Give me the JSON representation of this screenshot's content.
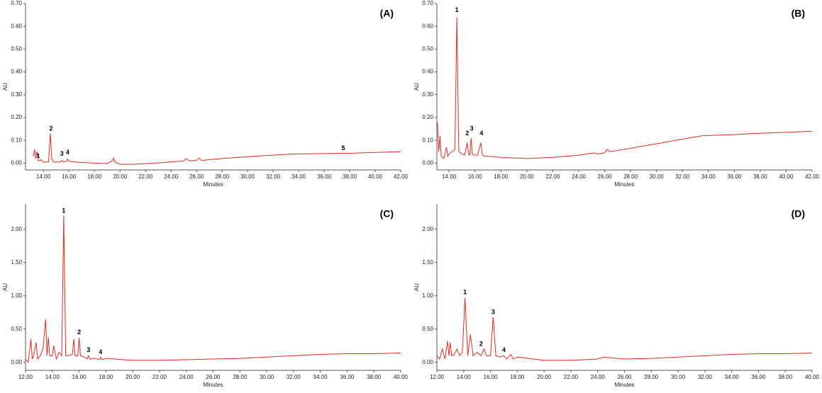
{
  "chart_data": [
    {
      "type": "line",
      "title": "(A)",
      "xlabel": "Minutes",
      "ylabel": "AU",
      "xlim": [
        12.6,
        42
      ],
      "ylim": [
        -0.03,
        0.7
      ],
      "xticks": [
        {
          "value": 14,
          "label": "14.00"
        },
        {
          "value": 16,
          "label": "16.00"
        },
        {
          "value": 18,
          "label": "18.00"
        },
        {
          "value": 20,
          "label": "20.00"
        },
        {
          "value": 22,
          "label": "22.00"
        },
        {
          "value": 24,
          "label": "24.00"
        },
        {
          "value": 26,
          "label": "26.00"
        },
        {
          "value": 28,
          "label": "28.00"
        },
        {
          "value": 30,
          "label": "30.00"
        },
        {
          "value": 32,
          "label": "32.00"
        },
        {
          "value": 34,
          "label": "34.00"
        },
        {
          "value": 36,
          "label": "36.00"
        },
        {
          "value": 38,
          "label": "38.00"
        },
        {
          "value": 40,
          "label": "40.00"
        },
        {
          "value": 42,
          "label": "42.00"
        }
      ],
      "yticks": [
        {
          "value": 0,
          "label": "0.00"
        },
        {
          "value": 0.1,
          "label": "0.10"
        },
        {
          "value": 0.2,
          "label": "0.20"
        },
        {
          "value": 0.3,
          "label": "0.30"
        },
        {
          "value": 0.4,
          "label": "0.40"
        },
        {
          "value": 0.5,
          "label": "0.50"
        },
        {
          "value": 0.6,
          "label": "0.60"
        },
        {
          "value": 0.7,
          "label": "0.70"
        }
      ],
      "x": [
        13.2,
        13.3,
        13.4,
        13.5,
        13.6,
        13.8,
        14.0,
        14.4,
        14.55,
        14.65,
        14.8,
        15.0,
        15.3,
        15.45,
        15.6,
        15.8,
        15.9,
        16.0,
        16.5,
        17.0,
        18.0,
        19.0,
        19.4,
        19.5,
        19.6,
        20.0,
        21.0,
        22.0,
        24.0,
        25.0,
        25.2,
        25.4,
        26.0,
        26.2,
        26.4,
        27.0,
        28.0,
        30.0,
        32.0,
        33.5,
        36.0,
        37.5,
        38.0,
        40.0,
        42.0
      ],
      "series": [
        {
          "color": "#e02a24",
          "values": [
            0.03,
            0.06,
            0.02,
            0.05,
            0.01,
            0.015,
            0.005,
            0.005,
            0.13,
            0.02,
            0.005,
            0.005,
            0.005,
            0.012,
            0.005,
            0.008,
            0.018,
            0.008,
            0.005,
            0.003,
            0.0,
            -0.002,
            0.01,
            0.022,
            0.005,
            -0.005,
            -0.005,
            -0.003,
            0.005,
            0.01,
            0.02,
            0.01,
            0.012,
            0.022,
            0.012,
            0.015,
            0.02,
            0.028,
            0.035,
            0.04,
            0.042,
            0.043,
            0.043,
            0.047,
            0.05
          ]
        }
      ],
      "annotations": [
        {
          "text": "1",
          "x": 13.6,
          "y": 0.03
        },
        {
          "text": "2",
          "x": 14.6,
          "y": 0.15
        },
        {
          "text": "3",
          "x": 15.45,
          "y": 0.04
        },
        {
          "text": "4",
          "x": 15.9,
          "y": 0.045
        },
        {
          "text": "5",
          "x": 37.5,
          "y": 0.065
        }
      ]
    },
    {
      "type": "line",
      "title": "(B)",
      "xlabel": "Minutes",
      "ylabel": "AU",
      "xlim": [
        13.06,
        42
      ],
      "ylim": [
        -0.03,
        0.7
      ],
      "xticks": [
        {
          "value": 14,
          "label": "14.00"
        },
        {
          "value": 16,
          "label": "16.00"
        },
        {
          "value": 18,
          "label": "18.00"
        },
        {
          "value": 20,
          "label": "20.00"
        },
        {
          "value": 22,
          "label": "22.00"
        },
        {
          "value": 24,
          "label": "24.00"
        },
        {
          "value": 26,
          "label": "26.00"
        },
        {
          "value": 28,
          "label": "28.00"
        },
        {
          "value": 30,
          "label": "30.00"
        },
        {
          "value": 32,
          "label": "32.00"
        },
        {
          "value": 34,
          "label": "34.00"
        },
        {
          "value": 36,
          "label": "36.00"
        },
        {
          "value": 38,
          "label": "38.00"
        },
        {
          "value": 40,
          "label": "40.00"
        },
        {
          "value": 42,
          "label": "42.00"
        }
      ],
      "yticks": [
        {
          "value": 0,
          "label": "0.00"
        },
        {
          "value": 0.1,
          "label": "0.10"
        },
        {
          "value": 0.2,
          "label": "0.20"
        },
        {
          "value": 0.3,
          "label": "0.30"
        },
        {
          "value": 0.4,
          "label": "0.40"
        },
        {
          "value": 0.5,
          "label": "0.50"
        },
        {
          "value": 0.6,
          "label": "0.60"
        },
        {
          "value": 0.7,
          "label": "0.70"
        }
      ],
      "x": [
        13.1,
        13.2,
        13.3,
        13.4,
        13.6,
        13.8,
        13.9,
        14.0,
        14.2,
        14.45,
        14.6,
        14.75,
        15.0,
        15.2,
        15.4,
        15.5,
        15.6,
        15.7,
        15.8,
        15.9,
        16.2,
        16.45,
        16.55,
        16.7,
        17.0,
        18.0,
        20.0,
        22.0,
        24.0,
        25.2,
        25.4,
        26.0,
        26.2,
        26.4,
        28.0,
        30.0,
        32.0,
        33.5,
        36.0,
        37.5,
        40.0,
        42.0
      ],
      "series": [
        {
          "color": "#e02a24",
          "values": [
            0.18,
            0.05,
            0.12,
            0.03,
            0.02,
            0.07,
            0.03,
            0.04,
            0.05,
            0.06,
            0.64,
            0.05,
            0.04,
            0.035,
            0.09,
            0.04,
            0.035,
            0.11,
            0.04,
            0.035,
            0.035,
            0.09,
            0.04,
            0.03,
            0.03,
            0.025,
            0.02,
            0.025,
            0.035,
            0.045,
            0.04,
            0.045,
            0.06,
            0.05,
            0.065,
            0.085,
            0.105,
            0.12,
            0.125,
            0.13,
            0.135,
            0.14
          ]
        }
      ],
      "annotations": [
        {
          "text": "1",
          "x": 14.6,
          "y": 0.67
        },
        {
          "text": "2",
          "x": 15.4,
          "y": 0.13
        },
        {
          "text": "3",
          "x": 15.75,
          "y": 0.15
        },
        {
          "text": "4",
          "x": 16.5,
          "y": 0.13
        }
      ]
    },
    {
      "type": "line",
      "title": "(C)",
      "xlabel": "Minutes",
      "ylabel": "AU",
      "xlim": [
        12,
        40
      ],
      "ylim": [
        -0.12,
        2.38
      ],
      "xticks": [
        {
          "value": 12,
          "label": "12.00"
        },
        {
          "value": 14,
          "label": "14.00"
        },
        {
          "value": 16,
          "label": "16.00"
        },
        {
          "value": 18,
          "label": "18.00"
        },
        {
          "value": 20,
          "label": "20.00"
        },
        {
          "value": 22,
          "label": "22.00"
        },
        {
          "value": 24,
          "label": "24.00"
        },
        {
          "value": 26,
          "label": "26.00"
        },
        {
          "value": 28,
          "label": "28.00"
        },
        {
          "value": 30,
          "label": "30.00"
        },
        {
          "value": 32,
          "label": "32.00"
        },
        {
          "value": 34,
          "label": "34.00"
        },
        {
          "value": 36,
          "label": "36.00"
        },
        {
          "value": 38,
          "label": "38.00"
        },
        {
          "value": 40,
          "label": "40.00"
        }
      ],
      "yticks": [
        {
          "value": 0,
          "label": "0.00"
        },
        {
          "value": 0.5,
          "label": "0.50"
        },
        {
          "value": 1,
          "label": "1.00"
        },
        {
          "value": 1.5,
          "label": "1.50"
        },
        {
          "value": 2,
          "label": "2.00"
        }
      ],
      "x": [
        12.0,
        12.2,
        12.4,
        12.5,
        12.6,
        12.8,
        12.9,
        13.1,
        13.3,
        13.5,
        13.6,
        13.7,
        13.8,
        14.0,
        14.1,
        14.3,
        14.5,
        14.7,
        14.85,
        15.0,
        15.2,
        15.5,
        15.6,
        15.7,
        15.9,
        16.0,
        16.1,
        16.4,
        16.6,
        16.7,
        16.8,
        17.2,
        17.5,
        17.6,
        17.7,
        18.0,
        20.0,
        22.0,
        24.0,
        26.0,
        28.0,
        30.0,
        32.0,
        34.0,
        36.0,
        38.0,
        40.0
      ],
      "series": [
        {
          "color": "#e02a24",
          "values": [
            0.05,
            0.0,
            0.35,
            0.05,
            0.1,
            0.3,
            0.05,
            0.1,
            0.2,
            0.65,
            0.1,
            0.38,
            0.1,
            0.1,
            0.25,
            0.05,
            0.15,
            0.1,
            2.2,
            0.1,
            0.1,
            0.12,
            0.35,
            0.1,
            0.1,
            0.37,
            0.1,
            0.08,
            0.05,
            0.1,
            0.05,
            0.06,
            0.04,
            0.08,
            0.04,
            0.06,
            0.03,
            0.03,
            0.04,
            0.05,
            0.06,
            0.08,
            0.1,
            0.12,
            0.13,
            0.13,
            0.14
          ]
        }
      ],
      "annotations": [
        {
          "text": "1",
          "x": 14.85,
          "y": 2.27
        },
        {
          "text": "2",
          "x": 16.0,
          "y": 0.45
        },
        {
          "text": "3",
          "x": 16.7,
          "y": 0.18
        },
        {
          "text": "4",
          "x": 17.6,
          "y": 0.15
        }
      ]
    },
    {
      "type": "line",
      "title": "(D)",
      "xlabel": "Minutes",
      "ylabel": "AU",
      "xlim": [
        12,
        40
      ],
      "ylim": [
        -0.12,
        2.38
      ],
      "xticks": [
        {
          "value": 12,
          "label": "12.00"
        },
        {
          "value": 14,
          "label": "14.00"
        },
        {
          "value": 16,
          "label": "16.00"
        },
        {
          "value": 18,
          "label": "18.00"
        },
        {
          "value": 20,
          "label": "20.00"
        },
        {
          "value": 22,
          "label": "22.00"
        },
        {
          "value": 24,
          "label": "24.00"
        },
        {
          "value": 26,
          "label": "26.00"
        },
        {
          "value": 28,
          "label": "28.00"
        },
        {
          "value": 30,
          "label": "30.00"
        },
        {
          "value": 32,
          "label": "32.00"
        },
        {
          "value": 34,
          "label": "34.00"
        },
        {
          "value": 36,
          "label": "36.00"
        },
        {
          "value": 38,
          "label": "38.00"
        },
        {
          "value": 40,
          "label": "40.00"
        }
      ],
      "yticks": [
        {
          "value": 0,
          "label": "0.00"
        },
        {
          "value": 0.5,
          "label": "0.50"
        },
        {
          "value": 1,
          "label": "1.00"
        },
        {
          "value": 1.5,
          "label": "1.50"
        },
        {
          "value": 2,
          "label": "2.00"
        }
      ],
      "x": [
        12.0,
        12.2,
        12.4,
        12.6,
        12.8,
        12.9,
        13.0,
        13.1,
        13.3,
        13.5,
        13.7,
        13.9,
        14.1,
        14.3,
        14.5,
        14.7,
        15.0,
        15.3,
        15.5,
        15.7,
        16.0,
        16.2,
        16.4,
        16.7,
        17.0,
        17.2,
        17.5,
        17.7,
        18.0,
        20.0,
        22.0,
        24.0,
        24.4,
        26.0,
        28.0,
        30.0,
        32.0,
        34.0,
        36.0,
        38.0,
        40.0
      ],
      "series": [
        {
          "color": "#e02a24",
          "values": [
            0.1,
            0.05,
            0.2,
            0.05,
            0.32,
            0.1,
            0.3,
            0.1,
            0.12,
            0.2,
            0.1,
            0.15,
            0.97,
            0.1,
            0.42,
            0.1,
            0.15,
            0.1,
            0.2,
            0.1,
            0.1,
            0.68,
            0.1,
            0.08,
            0.1,
            0.05,
            0.12,
            0.05,
            0.08,
            0.03,
            0.03,
            0.05,
            0.08,
            0.05,
            0.06,
            0.08,
            0.1,
            0.12,
            0.13,
            0.13,
            0.14
          ]
        }
      ],
      "annotations": [
        {
          "text": "1",
          "x": 14.1,
          "y": 1.05
        },
        {
          "text": "2",
          "x": 15.3,
          "y": 0.27
        },
        {
          "text": "3",
          "x": 16.2,
          "y": 0.75
        },
        {
          "text": "4",
          "x": 17.0,
          "y": 0.18
        }
      ]
    }
  ]
}
